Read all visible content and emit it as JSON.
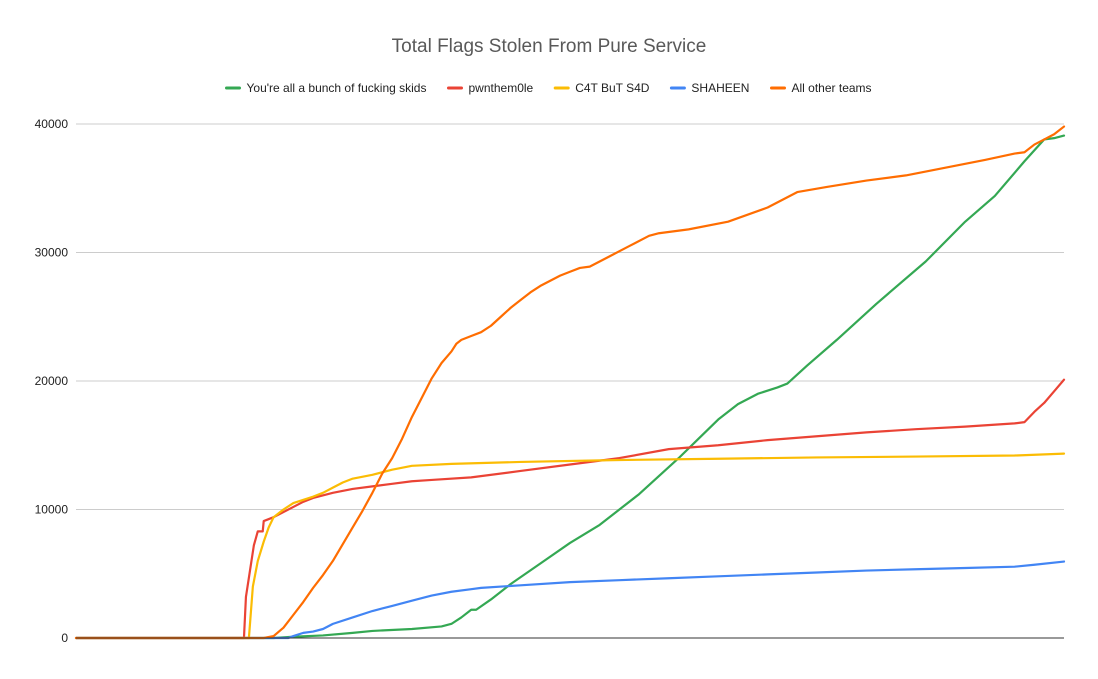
{
  "chart_data": {
    "type": "line",
    "title": "Total Flags Stolen From Pure Service",
    "xlabel": "",
    "ylabel": "",
    "xlim": [
      0,
      100
    ],
    "ylim": [
      0,
      40000
    ],
    "yticks": [
      0,
      10000,
      20000,
      30000,
      40000
    ],
    "y_tick_labels": [
      "0",
      "10000",
      "20000",
      "30000",
      "40000"
    ],
    "grid": "horizontal",
    "legend_position": "top",
    "series": [
      {
        "name": "You're all a bunch of fucking skids",
        "color": "#34a853",
        "points": [
          [
            0,
            0
          ],
          [
            20,
            0
          ],
          [
            22,
            100
          ],
          [
            25,
            200
          ],
          [
            28,
            400
          ],
          [
            30,
            550
          ],
          [
            34,
            700
          ],
          [
            37,
            900
          ],
          [
            38,
            1100
          ],
          [
            39,
            1600
          ],
          [
            40,
            2200
          ],
          [
            40.5,
            2200
          ],
          [
            42,
            3000
          ],
          [
            44,
            4200
          ],
          [
            47,
            5800
          ],
          [
            50,
            7400
          ],
          [
            53,
            8800
          ],
          [
            55,
            10000
          ],
          [
            57,
            11200
          ],
          [
            59,
            12600
          ],
          [
            61,
            14000
          ],
          [
            63,
            15500
          ],
          [
            65,
            17000
          ],
          [
            67,
            18200
          ],
          [
            69,
            19000
          ],
          [
            71,
            19500
          ],
          [
            72,
            19800
          ],
          [
            74,
            21200
          ],
          [
            77,
            23200
          ],
          [
            81,
            26000
          ],
          [
            86,
            29300
          ],
          [
            90,
            32400
          ],
          [
            93,
            34400
          ],
          [
            96,
            37100
          ],
          [
            98,
            38800
          ],
          [
            99,
            38900
          ],
          [
            100,
            39100
          ]
        ]
      },
      {
        "name": "pwnthem0le",
        "color": "#ea4335",
        "points": [
          [
            0,
            0
          ],
          [
            17,
            0
          ],
          [
            17.2,
            3200
          ],
          [
            17.6,
            5200
          ],
          [
            18,
            7200
          ],
          [
            18.4,
            8300
          ],
          [
            18.9,
            8300
          ],
          [
            19,
            9100
          ],
          [
            20,
            9400
          ],
          [
            21,
            9800
          ],
          [
            22,
            10200
          ],
          [
            23,
            10600
          ],
          [
            24,
            10900
          ],
          [
            26,
            11300
          ],
          [
            28,
            11600
          ],
          [
            30,
            11800
          ],
          [
            32,
            12000
          ],
          [
            34,
            12200
          ],
          [
            36,
            12300
          ],
          [
            40,
            12500
          ],
          [
            45,
            13000
          ],
          [
            50,
            13500
          ],
          [
            55,
            14000
          ],
          [
            60,
            14700
          ],
          [
            65,
            15000
          ],
          [
            70,
            15400
          ],
          [
            75,
            15700
          ],
          [
            80,
            16000
          ],
          [
            85,
            16250
          ],
          [
            90,
            16450
          ],
          [
            95,
            16700
          ],
          [
            96,
            16800
          ],
          [
            97,
            17600
          ],
          [
            98,
            18300
          ],
          [
            99,
            19200
          ],
          [
            100,
            20100
          ]
        ]
      },
      {
        "name": "C4T BuT S4D",
        "color": "#fbbc04",
        "points": [
          [
            0,
            0
          ],
          [
            17.5,
            0
          ],
          [
            17.9,
            4000
          ],
          [
            18.4,
            6000
          ],
          [
            19,
            7500
          ],
          [
            19.5,
            8600
          ],
          [
            20,
            9400
          ],
          [
            21,
            10000
          ],
          [
            22,
            10500
          ],
          [
            24,
            11000
          ],
          [
            25,
            11300
          ],
          [
            26,
            11700
          ],
          [
            27,
            12100
          ],
          [
            28,
            12400
          ],
          [
            30,
            12700
          ],
          [
            32,
            13100
          ],
          [
            34,
            13400
          ],
          [
            38,
            13550
          ],
          [
            45,
            13700
          ],
          [
            55,
            13850
          ],
          [
            65,
            13950
          ],
          [
            75,
            14050
          ],
          [
            85,
            14120
          ],
          [
            95,
            14200
          ],
          [
            100,
            14350
          ]
        ]
      },
      {
        "name": "SHAHEEN",
        "color": "#4285f4",
        "points": [
          [
            0,
            0
          ],
          [
            21.5,
            0
          ],
          [
            22,
            150
          ],
          [
            23,
            400
          ],
          [
            24,
            500
          ],
          [
            25,
            700
          ],
          [
            26,
            1100
          ],
          [
            28,
            1600
          ],
          [
            30,
            2100
          ],
          [
            32,
            2500
          ],
          [
            34,
            2900
          ],
          [
            36,
            3300
          ],
          [
            38,
            3600
          ],
          [
            40,
            3800
          ],
          [
            41,
            3900
          ],
          [
            45,
            4100
          ],
          [
            50,
            4350
          ],
          [
            55,
            4500
          ],
          [
            60,
            4650
          ],
          [
            65,
            4800
          ],
          [
            70,
            4950
          ],
          [
            75,
            5100
          ],
          [
            80,
            5250
          ],
          [
            85,
            5350
          ],
          [
            90,
            5450
          ],
          [
            95,
            5550
          ],
          [
            97,
            5700
          ],
          [
            100,
            5950
          ]
        ]
      },
      {
        "name": "All other teams",
        "color": "#ff6d01",
        "points": [
          [
            0,
            0
          ],
          [
            19,
            0
          ],
          [
            20,
            150
          ],
          [
            21,
            800
          ],
          [
            22,
            1800
          ],
          [
            23,
            2800
          ],
          [
            24,
            3900
          ],
          [
            25,
            4900
          ],
          [
            26,
            6000
          ],
          [
            27,
            7300
          ],
          [
            28,
            8600
          ],
          [
            29,
            9900
          ],
          [
            30,
            11300
          ],
          [
            31,
            12800
          ],
          [
            32,
            14000
          ],
          [
            33,
            15500
          ],
          [
            34,
            17200
          ],
          [
            35,
            18700
          ],
          [
            36,
            20200
          ],
          [
            37,
            21400
          ],
          [
            38,
            22300
          ],
          [
            38.5,
            22900
          ],
          [
            39,
            23200
          ],
          [
            40,
            23500
          ],
          [
            41,
            23800
          ],
          [
            42,
            24300
          ],
          [
            43,
            25000
          ],
          [
            44,
            25700
          ],
          [
            45,
            26300
          ],
          [
            46,
            26900
          ],
          [
            47,
            27400
          ],
          [
            48,
            27800
          ],
          [
            49,
            28200
          ],
          [
            50,
            28500
          ],
          [
            51,
            28800
          ],
          [
            52,
            28900
          ],
          [
            54,
            29700
          ],
          [
            56,
            30500
          ],
          [
            58,
            31300
          ],
          [
            59,
            31500
          ],
          [
            62,
            31800
          ],
          [
            66,
            32400
          ],
          [
            70,
            33500
          ],
          [
            73,
            34700
          ],
          [
            76,
            35100
          ],
          [
            80,
            35600
          ],
          [
            84,
            36000
          ],
          [
            88,
            36600
          ],
          [
            92,
            37200
          ],
          [
            95,
            37700
          ],
          [
            96,
            37800
          ],
          [
            97,
            38400
          ],
          [
            98,
            38800
          ],
          [
            99,
            39200
          ],
          [
            100,
            39800
          ]
        ]
      }
    ]
  }
}
